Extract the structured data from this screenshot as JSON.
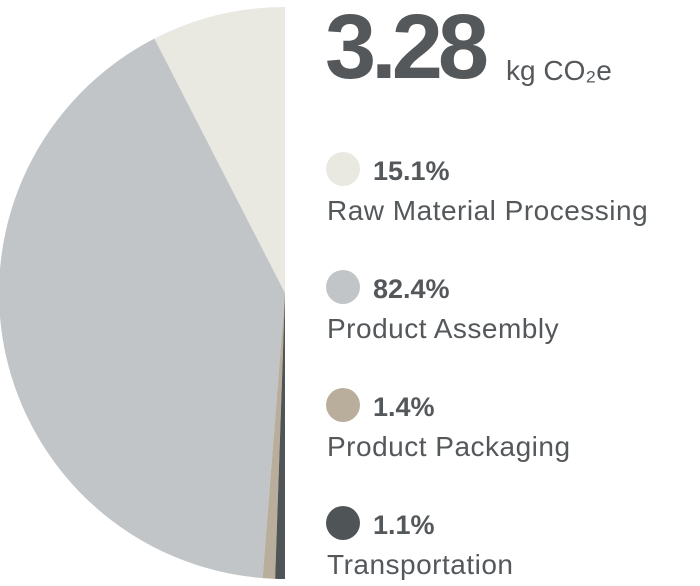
{
  "chart_data": {
    "type": "pie",
    "half": true,
    "title": "3.28",
    "unit": "kg CO₂e",
    "categories": [
      "Raw Material Processing",
      "Product Assembly",
      "Product Packaging",
      "Transportation"
    ],
    "values": [
      15.1,
      82.4,
      1.4,
      1.1
    ],
    "value_labels": [
      "15.1%",
      "82.4%",
      "1.4%",
      "1.1%"
    ],
    "colors": [
      "#e9e8e1",
      "#c1c5c7",
      "#b9ae9c",
      "#4f5457"
    ]
  }
}
